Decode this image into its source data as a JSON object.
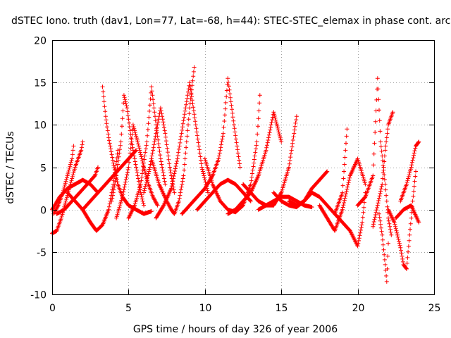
{
  "chart_data": {
    "type": "scatter",
    "title": "dSTEC Iono. truth (dav1, Lon=77, Lat=-68, h=44): STEC-STEC_elemax in phase cont. arc",
    "xlabel": "GPS time / hours of day 326 of year 2006",
    "ylabel": "dSTEC  / TECUs",
    "xlim": [
      0,
      25
    ],
    "ylim": [
      -10,
      20
    ],
    "xticks": [
      0,
      5,
      10,
      15,
      20,
      25
    ],
    "xtick_labels": [
      "0",
      "5",
      "10",
      "15",
      "20",
      "25"
    ],
    "yticks": [
      -10,
      -5,
      0,
      5,
      10,
      15,
      20
    ],
    "ytick_labels": [
      "-10",
      "-5",
      "0",
      "5",
      "10",
      "15",
      "20"
    ],
    "grid": true,
    "marker": "+",
    "color": "#ff0000",
    "arcs": [
      {
        "x": [
          0.0,
          0.3,
          0.6,
          0.9,
          1.2,
          1.5,
          1.9,
          2.0
        ],
        "y": [
          -2.8,
          -2.5,
          -1.0,
          1.0,
          3.0,
          5.0,
          7.0,
          8.0
        ]
      },
      {
        "x": [
          0.1,
          0.4,
          0.7,
          1.0,
          1.3,
          1.4
        ],
        "y": [
          -0.5,
          0.5,
          2.0,
          4.0,
          6.0,
          7.5
        ]
      },
      {
        "x": [
          0.0,
          0.5,
          1.0,
          1.5,
          2.0,
          2.5,
          3.0
        ],
        "y": [
          0.0,
          1.5,
          2.5,
          3.0,
          3.5,
          3.0,
          2.0
        ]
      },
      {
        "x": [
          0.3,
          0.8,
          1.3,
          1.8,
          2.3,
          2.8,
          3.0
        ],
        "y": [
          -0.5,
          0.0,
          1.0,
          2.0,
          3.0,
          4.0,
          5.0
        ]
      },
      {
        "x": [
          1.0,
          1.5,
          2.0,
          2.5,
          2.9,
          3.3,
          3.7,
          4.0,
          4.3
        ],
        "y": [
          2.0,
          1.0,
          0.0,
          -1.5,
          -2.5,
          -1.8,
          0.0,
          3.0,
          7.0
        ]
      },
      {
        "x": [
          2.0,
          2.5,
          3.0,
          3.5,
          4.0,
          4.5,
          5.0,
          5.5
        ],
        "y": [
          0.0,
          1.0,
          2.0,
          3.0,
          4.0,
          5.0,
          6.0,
          7.0
        ]
      },
      {
        "x": [
          3.3,
          3.5,
          3.7,
          4.0,
          4.3,
          4.6,
          5.0,
          5.5,
          6.0,
          6.5
        ],
        "y": [
          14.5,
          11.0,
          8.5,
          5.5,
          3.0,
          1.5,
          0.5,
          0.0,
          -0.5,
          -0.2
        ]
      },
      {
        "x": [
          3.9,
          4.2,
          4.5,
          4.7,
          4.9,
          5.2,
          5.5,
          5.8,
          6.0
        ],
        "y": [
          1.0,
          4.0,
          8.0,
          13.5,
          12.0,
          8.0,
          5.0,
          2.0,
          0.5
        ]
      },
      {
        "x": [
          4.2,
          4.6,
          5.0,
          5.3,
          5.6,
          6.0,
          6.3,
          6.6,
          6.9
        ],
        "y": [
          -1.0,
          1.5,
          5.0,
          10.0,
          8.0,
          5.0,
          3.0,
          1.5,
          0.5
        ]
      },
      {
        "x": [
          5.0,
          5.4,
          5.8,
          6.2,
          6.5,
          6.8,
          7.1,
          7.4
        ],
        "y": [
          -1.0,
          0.5,
          3.0,
          8.0,
          14.5,
          10.0,
          6.0,
          3.0
        ]
      },
      {
        "x": [
          6.0,
          6.4,
          6.8,
          7.1,
          7.4,
          7.7,
          8.0
        ],
        "y": [
          2.0,
          5.0,
          9.0,
          12.0,
          9.0,
          5.0,
          2.0
        ]
      },
      {
        "x": [
          6.5,
          7.0,
          7.5,
          7.8,
          8.0,
          8.3,
          8.6,
          8.8,
          9.0,
          9.3
        ],
        "y": [
          6.0,
          3.0,
          1.0,
          0.0,
          -0.5,
          1.0,
          4.0,
          8.0,
          12.0,
          16.8
        ]
      },
      {
        "x": [
          6.8,
          7.3,
          7.8,
          8.2,
          8.6,
          9.0,
          9.4,
          9.8,
          10.2
        ],
        "y": [
          -1.0,
          0.5,
          2.5,
          6.0,
          10.5,
          15.0,
          10.0,
          5.0,
          2.0
        ]
      },
      {
        "x": [
          8.5,
          9.0,
          9.5,
          10.0,
          10.5,
          10.9,
          11.2,
          11.5,
          11.9,
          12.3
        ],
        "y": [
          -0.5,
          0.5,
          1.5,
          2.5,
          4.0,
          6.0,
          9.0,
          15.5,
          10.0,
          5.0
        ]
      },
      {
        "x": [
          9.5,
          10.0,
          10.5,
          11.0,
          11.5,
          12.0,
          12.5,
          13.0
        ],
        "y": [
          0.0,
          1.0,
          2.0,
          3.0,
          3.5,
          3.0,
          2.0,
          1.0
        ]
      },
      {
        "x": [
          10.0,
          10.5,
          11.0,
          11.5,
          12.0,
          12.5,
          13.0,
          13.4,
          13.6
        ],
        "y": [
          6.0,
          3.0,
          1.0,
          0.0,
          -0.3,
          0.5,
          3.0,
          8.0,
          13.5
        ]
      },
      {
        "x": [
          11.5,
          12.0,
          12.5,
          13.0,
          13.5,
          14.0,
          14.5,
          15.0
        ],
        "y": [
          -0.5,
          0.0,
          1.0,
          2.0,
          4.0,
          7.0,
          11.5,
          8.0
        ]
      },
      {
        "x": [
          12.5,
          13.0,
          13.5,
          14.0,
          14.5,
          15.0,
          15.5,
          16.0
        ],
        "y": [
          3.0,
          2.0,
          1.0,
          0.5,
          0.5,
          2.0,
          5.0,
          11.0
        ]
      },
      {
        "x": [
          13.5,
          14.0,
          14.5,
          15.0,
          15.5,
          16.0,
          16.5,
          17.0
        ],
        "y": [
          0.0,
          0.5,
          1.0,
          1.5,
          1.5,
          1.0,
          0.5,
          0.3
        ]
      },
      {
        "x": [
          14.5,
          15.0,
          15.5,
          16.0,
          16.5,
          17.0,
          17.5,
          18.0
        ],
        "y": [
          2.0,
          1.0,
          0.5,
          0.3,
          1.0,
          2.5,
          3.5,
          4.5
        ]
      },
      {
        "x": [
          15.5,
          16.0,
          16.5,
          17.0,
          17.5,
          18.0,
          18.5,
          19.0,
          19.3
        ],
        "y": [
          1.0,
          0.5,
          1.0,
          2.0,
          1.5,
          0.5,
          -0.5,
          2.0,
          9.5
        ]
      },
      {
        "x": [
          17.5,
          18.0,
          18.5,
          19.0,
          19.5,
          20.0,
          20.5
        ],
        "y": [
          0.5,
          -1.0,
          -2.5,
          0.0,
          4.0,
          6.0,
          3.0
        ]
      },
      {
        "x": [
          18.5,
          19.0,
          19.5,
          20.0,
          20.3,
          20.5
        ],
        "y": [
          -0.5,
          -1.5,
          -2.5,
          -4.3,
          -1.5,
          2.0
        ]
      },
      {
        "x": [
          20.0,
          20.5,
          21.0,
          21.3,
          21.5,
          21.8,
          22.0,
          22.2
        ],
        "y": [
          0.5,
          1.5,
          4.0,
          15.5,
          8.0,
          3.0,
          -1.0,
          -3.0
        ]
      },
      {
        "x": [
          21.0,
          21.3,
          21.6,
          21.8,
          22.0,
          22.3
        ],
        "y": [
          -2.0,
          0.5,
          3.0,
          7.0,
          10.0,
          11.5
        ]
      },
      {
        "x": [
          21.4,
          21.6,
          21.8,
          21.9,
          22.0
        ],
        "y": [
          -0.5,
          -3.0,
          -6.5,
          -8.5,
          -4.0
        ]
      },
      {
        "x": [
          22.0,
          22.4,
          22.8,
          23.0,
          23.2,
          23.4,
          23.6,
          23.8
        ],
        "y": [
          0.0,
          -1.5,
          -4.5,
          -6.5,
          -7.0,
          -3.0,
          1.0,
          4.5
        ]
      },
      {
        "x": [
          22.8,
          23.2,
          23.5,
          23.8,
          24.0
        ],
        "y": [
          1.0,
          3.0,
          5.0,
          7.5,
          8.0
        ]
      },
      {
        "x": [
          22.5,
          23.0,
          23.5,
          24.0
        ],
        "y": [
          -1.0,
          0.0,
          0.5,
          -1.5
        ]
      }
    ]
  }
}
